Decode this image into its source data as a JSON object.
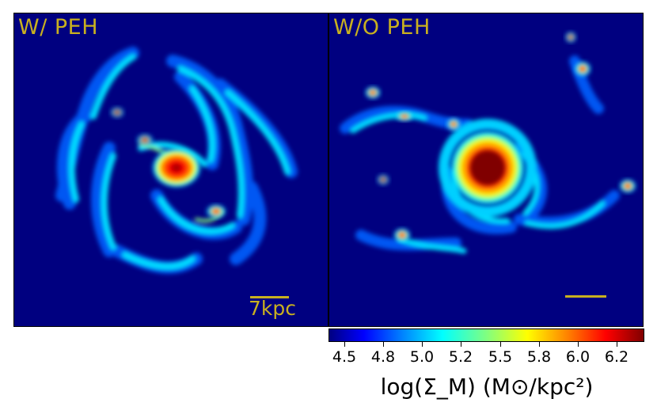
{
  "panels": [
    {
      "label": "W/ PEH",
      "scalebar_text": "7kpc"
    },
    {
      "label": "W/O PEH",
      "scalebar_text": ""
    }
  ],
  "colorbar": {
    "ticks": [
      "4.5",
      "4.8",
      "5.0",
      "5.2",
      "5.5",
      "5.8",
      "6.0",
      "6.2"
    ],
    "label": "log(Σ_M) (M⊙/kpc²)",
    "colormap": "jet"
  },
  "colors": {
    "background": "#000080",
    "label_color": "#c8b020"
  }
}
